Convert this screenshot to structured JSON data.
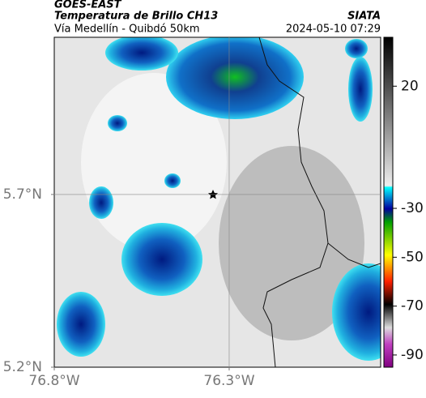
{
  "header": {
    "title": "GOES-EAST",
    "subtitle": "Temperatura de Brillo CH13",
    "source": "SIATA",
    "route": "Vía Medellín - Quibdó 50km",
    "datetime": "2024-05-10 07:29"
  },
  "map": {
    "xlim": [
      -76.8,
      -75.867
    ],
    "ylim": [
      5.2,
      6.155
    ],
    "xticks": [
      {
        "value": -76.8,
        "label": "76.8°W"
      },
      {
        "value": -76.3,
        "label": "76.3°W"
      }
    ],
    "yticks": [
      {
        "value": 5.2,
        "label": "5.2°N"
      },
      {
        "value": 5.7,
        "label": "5.7°N"
      }
    ]
  },
  "colorbar": {
    "range": [
      -95,
      40
    ],
    "ticks": [
      20,
      -30,
      -50,
      -70,
      -90
    ]
  }
}
